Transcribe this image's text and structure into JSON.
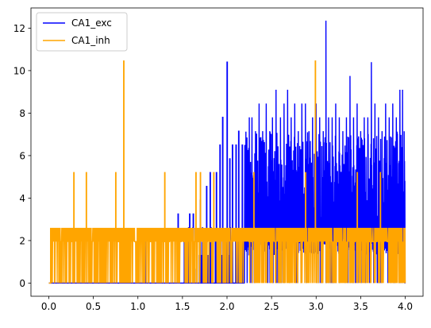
{
  "chart_data": {
    "type": "line",
    "title": "",
    "xlabel": "",
    "ylabel": "",
    "xlim": [
      -0.2,
      4.2
    ],
    "ylim": [
      -0.62,
      12.95
    ],
    "xticks": [
      0.0,
      0.5,
      1.0,
      1.5,
      2.0,
      2.5,
      3.0,
      3.5,
      4.0
    ],
    "xtick_labels": [
      "0.0",
      "0.5",
      "1.0",
      "1.5",
      "2.0",
      "2.5",
      "3.0",
      "3.5",
      "4.0"
    ],
    "yticks": [
      0,
      2,
      4,
      6,
      8,
      10,
      12
    ],
    "ytick_labels": [
      "0",
      "2",
      "4",
      "6",
      "8",
      "10",
      "12"
    ],
    "grid": false,
    "legend_position": "top-left",
    "series": [
      {
        "name": "CA1_exc",
        "color": "#0000ff",
        "spikes": [
          [
            0.85,
            0.65
          ],
          [
            1.08,
            1.95
          ],
          [
            1.45,
            3.25
          ],
          [
            1.58,
            3.25
          ],
          [
            1.62,
            3.25
          ],
          [
            1.7,
            3.9
          ],
          [
            1.77,
            4.55
          ],
          [
            1.81,
            5.2
          ],
          [
            1.88,
            5.2
          ],
          [
            1.92,
            6.5
          ],
          [
            1.95,
            7.8
          ],
          [
            2.0,
            10.4
          ],
          [
            2.03,
            5.85
          ],
          [
            2.06,
            6.5
          ],
          [
            2.1,
            6.5
          ],
          [
            2.13,
            7.15
          ],
          [
            2.17,
            6.5
          ],
          [
            2.2,
            6.5
          ],
          [
            2.25,
            7.8
          ],
          [
            2.28,
            7.8
          ],
          [
            2.32,
            7.15
          ],
          [
            2.36,
            8.45
          ],
          [
            2.4,
            7.15
          ],
          [
            2.44,
            8.45
          ],
          [
            2.48,
            7.15
          ],
          [
            2.51,
            7.8
          ],
          [
            2.55,
            9.1
          ],
          [
            2.6,
            7.8
          ],
          [
            2.64,
            8.45
          ],
          [
            2.68,
            9.1
          ],
          [
            2.72,
            7.8
          ],
          [
            2.76,
            8.45
          ],
          [
            2.8,
            7.15
          ],
          [
            2.84,
            8.45
          ],
          [
            2.88,
            8.45
          ],
          [
            2.92,
            7.15
          ],
          [
            2.96,
            7.8
          ],
          [
            3.0,
            8.45
          ],
          [
            3.04,
            7.8
          ],
          [
            3.08,
            7.15
          ],
          [
            3.11,
            12.35
          ],
          [
            3.14,
            7.8
          ],
          [
            3.18,
            7.8
          ],
          [
            3.22,
            8.45
          ],
          [
            3.26,
            7.8
          ],
          [
            3.3,
            7.15
          ],
          [
            3.34,
            7.8
          ],
          [
            3.38,
            9.75
          ],
          [
            3.42,
            7.8
          ],
          [
            3.46,
            8.45
          ],
          [
            3.5,
            7.15
          ],
          [
            3.54,
            7.8
          ],
          [
            3.58,
            7.8
          ],
          [
            3.62,
            10.4
          ],
          [
            3.66,
            8.45
          ],
          [
            3.7,
            7.8
          ],
          [
            3.74,
            7.15
          ],
          [
            3.78,
            8.45
          ],
          [
            3.82,
            7.8
          ],
          [
            3.86,
            8.45
          ],
          [
            3.9,
            7.8
          ],
          [
            3.94,
            9.1
          ],
          [
            3.97,
            9.1
          ],
          [
            4.0,
            7.15
          ]
        ],
        "dense_band": {
          "x_start": 2.2,
          "x_end": 4.0,
          "low": 2.6,
          "high": 7.15
        }
      },
      {
        "name": "CA1_inh",
        "color": "#ffa500",
        "spikes": [
          [
            0.28,
            5.2
          ],
          [
            0.42,
            5.2
          ],
          [
            0.75,
            5.2
          ],
          [
            0.84,
            10.45
          ],
          [
            1.3,
            5.2
          ],
          [
            1.65,
            5.2
          ],
          [
            1.7,
            5.2
          ],
          [
            1.85,
            5.2
          ],
          [
            2.3,
            5.2
          ],
          [
            2.88,
            5.2
          ],
          [
            2.99,
            10.45
          ],
          [
            3.46,
            5.2
          ],
          [
            3.72,
            5.2
          ]
        ],
        "baseline": {
          "x_start": 0.02,
          "x_end": 4.0,
          "low": 0,
          "high": 2.6
        }
      }
    ]
  }
}
